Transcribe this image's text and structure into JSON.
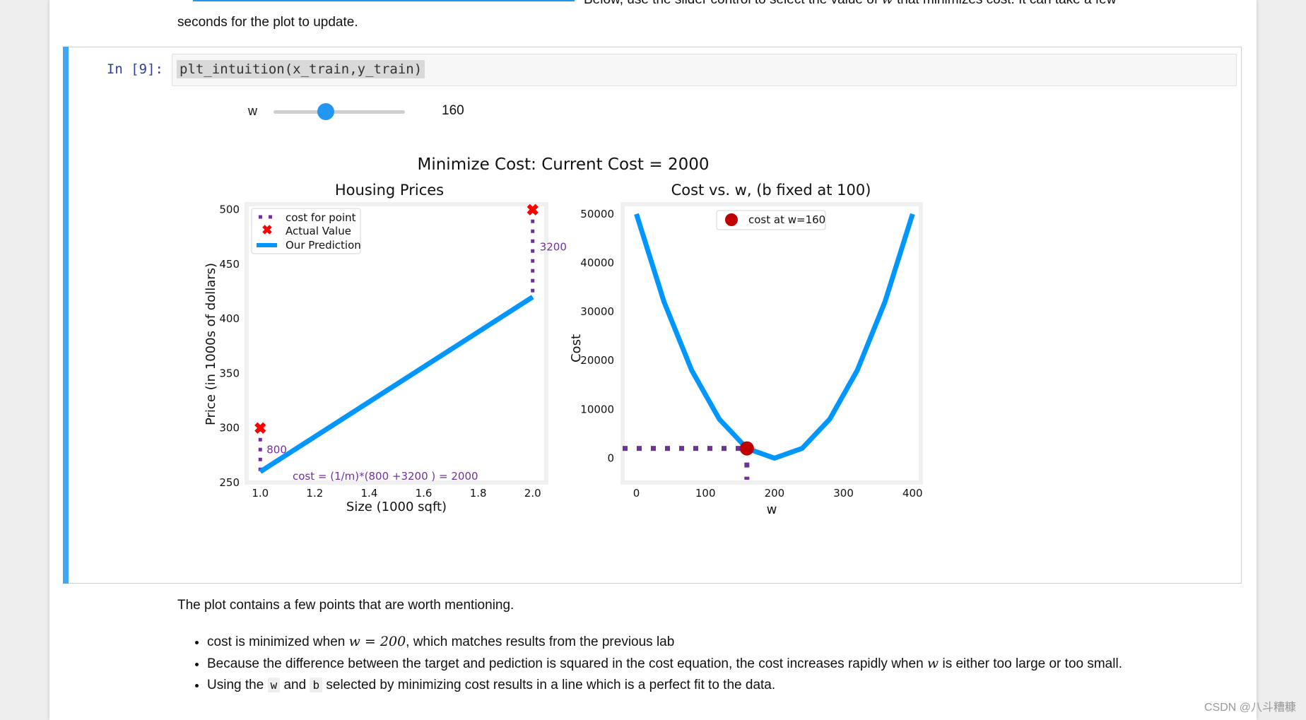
{
  "intro": {
    "line1": "Below, use the slider control to select the value of",
    "line1_var": "w",
    "line1_tail": "that minimizes cost. It can take a few",
    "line2": "seconds for the plot to update."
  },
  "cell": {
    "prompt": "In  [9]:",
    "code": "plt_intuition(x_train,y_train)"
  },
  "widget": {
    "label": "w",
    "value": "160",
    "fraction": 0.4
  },
  "figure": {
    "suptitle": "Minimize Cost: Current Cost = 2000",
    "colors": {
      "prediction": "#0096ff",
      "actual": "#ff0000",
      "cost_line": "#7030a0",
      "marker": "#c00000"
    }
  },
  "chart_data": [
    {
      "type": "line",
      "title": "Housing Prices",
      "xlabel": "Size (1000 sqft)",
      "ylabel": "Price (in 1000s of dollars)",
      "xlim": [
        0.95,
        2.05
      ],
      "ylim": [
        250,
        505
      ],
      "xticks": [
        "1.0",
        "1.2",
        "1.4",
        "1.6",
        "1.8",
        "2.0"
      ],
      "yticks": [
        "250",
        "300",
        "350",
        "400",
        "450",
        "500"
      ],
      "actual": {
        "name": "Actual Value",
        "x": [
          1.0,
          2.0
        ],
        "y": [
          300,
          500
        ]
      },
      "prediction": {
        "name": "Our Prediction",
        "x": [
          1.0,
          2.0
        ],
        "y": [
          260,
          420
        ]
      },
      "cost_lines": {
        "name": "cost for point",
        "labels": [
          "800",
          "3200"
        ]
      },
      "legend": [
        "cost for point",
        "Actual Value",
        "Our Prediction"
      ],
      "annotation": "cost = (1/m)*(800 +3200 ) = 2000"
    },
    {
      "type": "line",
      "title": "Cost vs. w, (b fixed at 100)",
      "xlabel": "w",
      "ylabel": "Cost",
      "xlim": [
        -20,
        412
      ],
      "ylim": [
        -5000,
        52000
      ],
      "xticks": [
        "0",
        "100",
        "200",
        "300",
        "400"
      ],
      "yticks": [
        "0",
        "10000",
        "20000",
        "30000",
        "40000",
        "50000"
      ],
      "curve": {
        "w": [
          0,
          40,
          80,
          120,
          160,
          200,
          240,
          280,
          320,
          360,
          400
        ],
        "cost": [
          50000,
          32000,
          18000,
          8000,
          2000,
          0,
          2000,
          8000,
          18000,
          32000,
          50000
        ]
      },
      "current": {
        "w": 160,
        "cost": 2000,
        "label": "cost at w=160"
      },
      "legend": [
        "cost at w=160"
      ]
    }
  ],
  "bottom": {
    "intro": "The plot contains a few points that are worth mentioning.",
    "b1_pre": "cost is minimized when",
    "b1_math": "w = 200",
    "b1_post": ", which matches results from the previous lab",
    "b2_pre": "Because the difference between the target and pediction is squared in the cost equation, the cost increases rapidly when",
    "b2_var": "w",
    "b2_post": "is either too large or too small.",
    "b3_pre": "Using the",
    "b3_w": "w",
    "b3_and": "and",
    "b3_b": "b",
    "b3_post": "selected by minimizing cost results in a line which is a perfect fit to the data."
  },
  "watermark": "CSDN @八斗糟糠"
}
